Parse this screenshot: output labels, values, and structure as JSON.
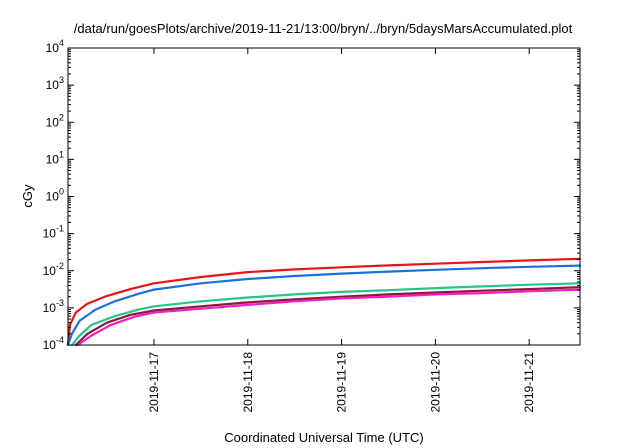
{
  "chart_data": {
    "type": "line",
    "title": "/data/run/goesPlots/archive/2019-11-21/13:00/bryn/../bryn/5daysMarsAccumulated.plot",
    "xlabel": "Coordinated Universal Time (UTC)",
    "ylabel": "cGy",
    "yscale": "log",
    "ylim": [
      0.0001,
      10000
    ],
    "xlim": [
      "2019-11-16 02:00",
      "2019-11-21 13:00"
    ],
    "y_ticks": [
      {
        "value": 0.0001,
        "base": "10",
        "exp": "-4"
      },
      {
        "value": 0.001,
        "base": "10",
        "exp": "-3"
      },
      {
        "value": 0.01,
        "base": "10",
        "exp": "-2"
      },
      {
        "value": 0.1,
        "base": "10",
        "exp": "-1"
      },
      {
        "value": 1,
        "base": "10",
        "exp": "0"
      },
      {
        "value": 10,
        "base": "10",
        "exp": "1"
      },
      {
        "value": 100,
        "base": "10",
        "exp": "2"
      },
      {
        "value": 1000,
        "base": "10",
        "exp": "3"
      },
      {
        "value": 10000,
        "base": "10",
        "exp": "4"
      }
    ],
    "x_ticks": [
      {
        "value": "2019-11-17 00:00",
        "label": "2019-11-17"
      },
      {
        "value": "2019-11-18 00:00",
        "label": "2019-11-18"
      },
      {
        "value": "2019-11-19 00:00",
        "label": "2019-11-19"
      },
      {
        "value": "2019-11-20 00:00",
        "label": "2019-11-20"
      },
      {
        "value": "2019-11-21 00:00",
        "label": "2019-11-21"
      }
    ],
    "grid": false,
    "legend": "none",
    "series": [
      {
        "color": "#e8141a",
        "points": [
          [
            "2019-11-16 02:00",
            0.0001
          ],
          [
            "2019-11-16 02:30",
            0.00035
          ],
          [
            "2019-11-16 04:00",
            0.00075
          ],
          [
            "2019-11-16 07:00",
            0.0013
          ],
          [
            "2019-11-16 12:00",
            0.0021
          ],
          [
            "2019-11-16 18:00",
            0.0032
          ],
          [
            "2019-11-17 00:00",
            0.0046
          ],
          [
            "2019-11-17 12:00",
            0.0068
          ],
          [
            "2019-11-18 00:00",
            0.0092
          ],
          [
            "2019-11-18 12:00",
            0.0109
          ],
          [
            "2019-11-19 00:00",
            0.0124
          ],
          [
            "2019-11-19 12:00",
            0.0139
          ],
          [
            "2019-11-20 00:00",
            0.0155
          ],
          [
            "2019-11-20 12:00",
            0.0172
          ],
          [
            "2019-11-21 00:00",
            0.019
          ],
          [
            "2019-11-21 13:00",
            0.021
          ]
        ]
      },
      {
        "color": "#1f6fe0",
        "points": [
          [
            "2019-11-16 02:00",
            0.0001
          ],
          [
            "2019-11-16 03:00",
            0.0002
          ],
          [
            "2019-11-16 05:00",
            0.00045
          ],
          [
            "2019-11-16 09:00",
            0.0009
          ],
          [
            "2019-11-16 14:00",
            0.0015
          ],
          [
            "2019-11-16 20:00",
            0.0024
          ],
          [
            "2019-11-17 00:00",
            0.0031
          ],
          [
            "2019-11-17 12:00",
            0.0046
          ],
          [
            "2019-11-18 00:00",
            0.006
          ],
          [
            "2019-11-18 12:00",
            0.0072
          ],
          [
            "2019-11-19 00:00",
            0.0084
          ],
          [
            "2019-11-19 12:00",
            0.0095
          ],
          [
            "2019-11-20 00:00",
            0.0106
          ],
          [
            "2019-11-20 12:00",
            0.0117
          ],
          [
            "2019-11-21 00:00",
            0.0128
          ],
          [
            "2019-11-21 13:00",
            0.0138
          ]
        ]
      },
      {
        "color": "#27c48f",
        "points": [
          [
            "2019-11-16 03:00",
            0.0001
          ],
          [
            "2019-11-16 05:00",
            0.00018
          ],
          [
            "2019-11-16 08:00",
            0.00035
          ],
          [
            "2019-11-16 14:00",
            0.0006
          ],
          [
            "2019-11-16 20:00",
            0.0009
          ],
          [
            "2019-11-17 00:00",
            0.0011
          ],
          [
            "2019-11-17 12:00",
            0.0015
          ],
          [
            "2019-11-18 00:00",
            0.0019
          ],
          [
            "2019-11-18 12:00",
            0.0023
          ],
          [
            "2019-11-19 00:00",
            0.0027
          ],
          [
            "2019-11-19 12:00",
            0.003
          ],
          [
            "2019-11-20 00:00",
            0.0034
          ],
          [
            "2019-11-20 12:00",
            0.0038
          ],
          [
            "2019-11-21 00:00",
            0.0042
          ],
          [
            "2019-11-21 13:00",
            0.0046
          ]
        ]
      },
      {
        "color": "#8b1a3a",
        "points": [
          [
            "2019-11-16 04:00",
            0.0001
          ],
          [
            "2019-11-16 07:00",
            0.0002
          ],
          [
            "2019-11-16 12:00",
            0.0004
          ],
          [
            "2019-11-16 18:00",
            0.00065
          ],
          [
            "2019-11-17 00:00",
            0.00085
          ],
          [
            "2019-11-17 12:00",
            0.0011
          ],
          [
            "2019-11-18 00:00",
            0.0014
          ],
          [
            "2019-11-18 12:00",
            0.0017
          ],
          [
            "2019-11-19 00:00",
            0.002
          ],
          [
            "2019-11-19 12:00",
            0.0023
          ],
          [
            "2019-11-20 00:00",
            0.0026
          ],
          [
            "2019-11-20 12:00",
            0.0029
          ],
          [
            "2019-11-21 00:00",
            0.0032
          ],
          [
            "2019-11-21 13:00",
            0.0036
          ]
        ]
      },
      {
        "color": "#ee21c8",
        "points": [
          [
            "2019-11-16 04:30",
            0.0001
          ],
          [
            "2019-11-16 08:00",
            0.00018
          ],
          [
            "2019-11-16 13:00",
            0.00035
          ],
          [
            "2019-11-16 19:00",
            0.00058
          ],
          [
            "2019-11-17 00:00",
            0.00075
          ],
          [
            "2019-11-17 12:00",
            0.00095
          ],
          [
            "2019-11-18 00:00",
            0.0012
          ],
          [
            "2019-11-18 12:00",
            0.0015
          ],
          [
            "2019-11-19 00:00",
            0.0018
          ],
          [
            "2019-11-19 12:00",
            0.002
          ],
          [
            "2019-11-20 00:00",
            0.0023
          ],
          [
            "2019-11-20 12:00",
            0.0025
          ],
          [
            "2019-11-21 00:00",
            0.0028
          ],
          [
            "2019-11-21 13:00",
            0.0031
          ]
        ]
      }
    ]
  }
}
